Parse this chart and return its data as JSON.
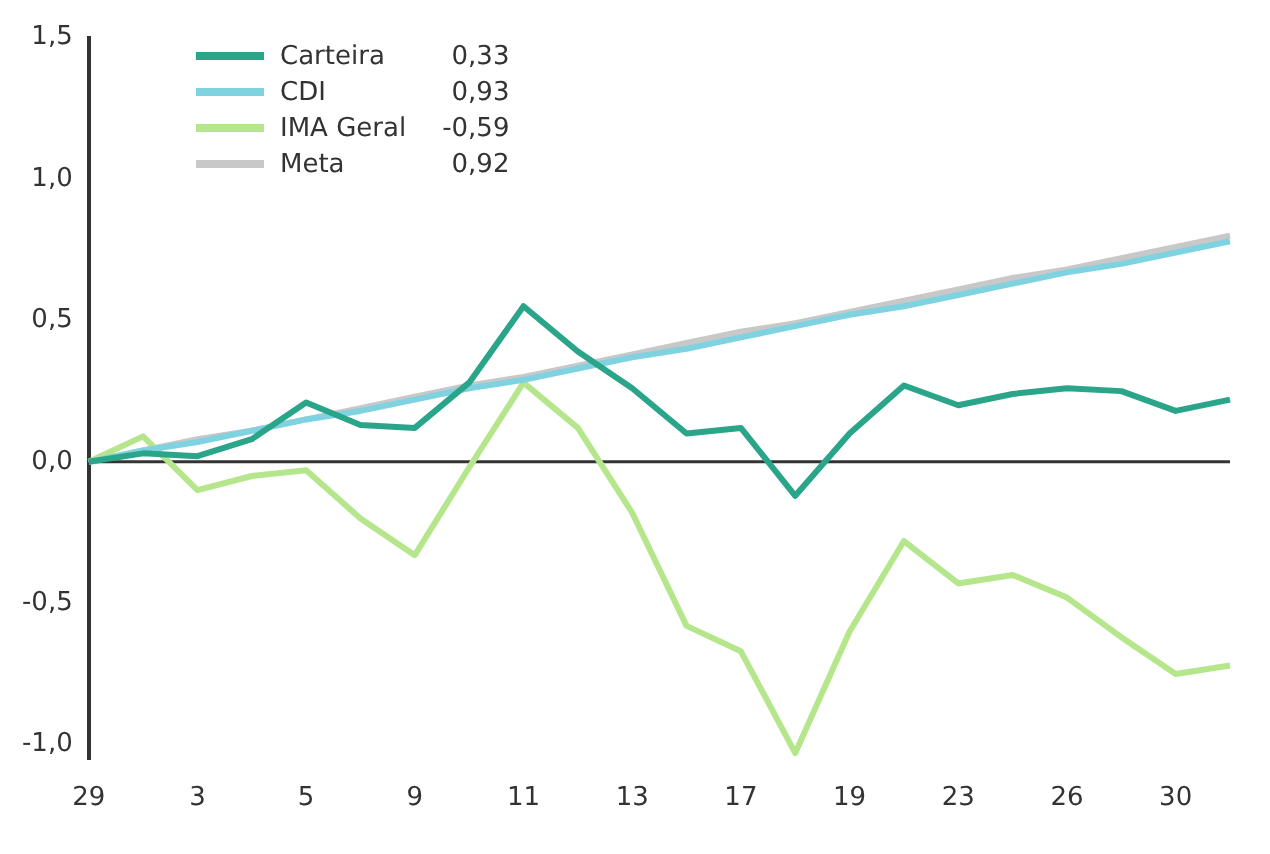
{
  "chart_data": {
    "type": "line",
    "categories": [
      "29",
      null,
      "3",
      null,
      "5",
      null,
      "9",
      null,
      "11",
      null,
      "13",
      null,
      "17",
      null,
      "19",
      null,
      "23",
      null,
      "26",
      null,
      "30",
      null
    ],
    "series": [
      {
        "name": "Carteira",
        "color": "#2aa58a",
        "values": [
          0,
          0.03,
          0.02,
          0.08,
          0.21,
          0.13,
          0.12,
          0.28,
          0.55,
          0.39,
          0.26,
          0.1,
          0.12,
          -0.12,
          0.1,
          0.27,
          0.2,
          0.24,
          0.26,
          0.25,
          0.18,
          0.22
        ]
      },
      {
        "name": "CDI",
        "color": "#7fd3e0",
        "values": [
          0,
          0.04,
          0.07,
          0.11,
          0.15,
          0.18,
          0.22,
          0.26,
          0.29,
          0.33,
          0.37,
          0.4,
          0.44,
          0.48,
          0.52,
          0.55,
          0.59,
          0.63,
          0.67,
          0.7,
          0.74,
          0.78
        ]
      },
      {
        "name": "IMA Geral",
        "color": "#b5e68c",
        "values": [
          0,
          0.09,
          -0.1,
          -0.05,
          -0.03,
          -0.2,
          -0.33,
          -0.02,
          0.28,
          0.12,
          -0.18,
          -0.58,
          -0.67,
          -1.03,
          -0.6,
          -0.28,
          -0.43,
          -0.4,
          -0.48,
          -0.62,
          -0.75,
          -0.72
        ]
      },
      {
        "name": "Meta",
        "color": "#c8c8c8",
        "values": [
          0,
          0.04,
          0.08,
          0.11,
          0.15,
          0.19,
          0.23,
          0.27,
          0.3,
          0.34,
          0.38,
          0.42,
          0.46,
          0.49,
          0.53,
          0.57,
          0.61,
          0.65,
          0.68,
          0.72,
          0.76,
          0.8
        ]
      }
    ],
    "annotations": [
      "0,33",
      "0,93",
      "-0,59",
      "0,92"
    ],
    "ylim": [
      -1.05,
      1.5
    ],
    "yticks": [
      {
        "value": -1,
        "label": "-1,0"
      },
      {
        "value": -0.5,
        "label": "-0,5"
      },
      {
        "value": 0,
        "label": "0,0"
      },
      {
        "value": 0.5,
        "label": "0,5"
      },
      {
        "value": 1,
        "label": "1,0"
      },
      {
        "value": 1.5,
        "label": "1,5"
      }
    ],
    "ref_lines": [
      {
        "axis": "y",
        "value": 0,
        "color": "#333333"
      }
    ],
    "legend": "top left",
    "marker": "none",
    "line_style": "solid",
    "grid": false
  }
}
